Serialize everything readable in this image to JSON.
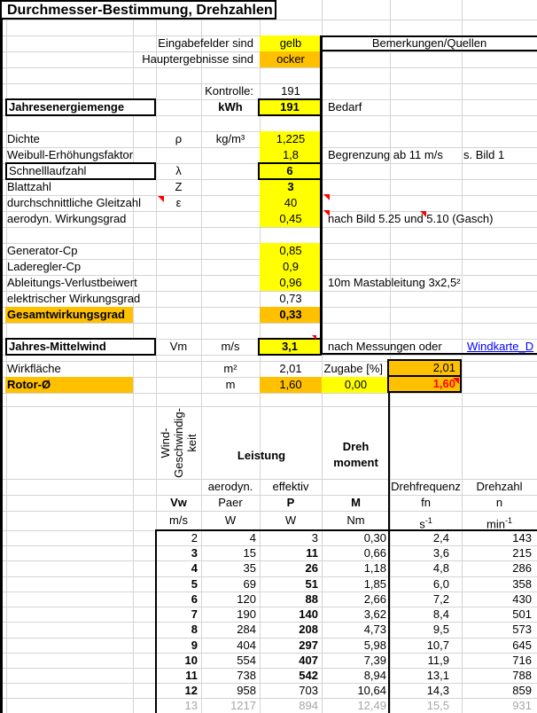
{
  "colors": {
    "input_fill": "#ffff00",
    "result_fill": "#ffc000",
    "link_blue": "#0000ff",
    "highlight_red": "#ff0000",
    "inactive_gray": "#a6a6a6"
  },
  "title": "Durchmesser-Bestimmung, Drehzahlen",
  "legend": {
    "input_label": "Eingabefelder sind",
    "input_value": "gelb",
    "result_label": "Hauptergebnisse sind",
    "result_value": "ocker"
  },
  "remarks": {
    "header": "Bemerkungen/Quellen"
  },
  "kontrolle": {
    "label": "Kontrolle:",
    "value": "191"
  },
  "energy": {
    "label": "Jahresenergiemenge",
    "unit": "kWh",
    "value": "191",
    "remark": "Bedarf"
  },
  "params": {
    "dichte": {
      "label": "Dichte",
      "symbol": "ρ",
      "unit": "kg/m³",
      "value": "1,225"
    },
    "weibull": {
      "label": "Weibull-Erhöhungsfaktor",
      "value": "1,8",
      "remark": "Begrenzung ab 11 m/s",
      "remark2": "s. Bild 1"
    },
    "schnelllaufzahl": {
      "label": "Schnelllaufzahl",
      "symbol": "λ",
      "value": "6"
    },
    "blattzahl": {
      "label": "Blattzahl",
      "symbol": "Z",
      "value": "3"
    },
    "gleitzahl": {
      "label": "durchschnittliche Gleitzahl",
      "symbol": "ε",
      "value": "40"
    },
    "aero_wirkungsgrad": {
      "label": "aerodyn. Wirkungsgrad",
      "value": "0,45",
      "remark": "nach Bild 5.25 und 5.10 (Gasch)"
    },
    "generator_cp": {
      "label": "Generator-Cp",
      "value": "0,85"
    },
    "laderegler_cp": {
      "label": "Laderegler-Cp",
      "value": "0,9"
    },
    "ableitung": {
      "label": "Ableitungs-Verlustbeiwert",
      "value": "0,96",
      "remark": "10m Mastableitung 3x2,5²"
    },
    "elektrisch": {
      "label": "elektrischer Wirkungsgrad",
      "value": "0,73"
    },
    "gesamt": {
      "label": "Gesamtwirkungsgrad",
      "value": "0,33"
    },
    "mittelwind": {
      "label": "Jahres-Mittelwind",
      "symbol": "Vm",
      "unit": "m/s",
      "value": "3,1",
      "remark": "nach Messungen oder",
      "link": "Windkarte_D"
    },
    "wirkflaeche": {
      "label": "Wirkfläche",
      "unit": "m²",
      "value": "2,01",
      "zugabe_label": "Zugabe [%]",
      "result": "2,01"
    },
    "rotor": {
      "label": "Rotor-Ø",
      "unit": "m",
      "value": "1,60",
      "zugabe": "0,00",
      "result": "1,60"
    }
  },
  "table": {
    "group_wind": [
      "Wind-",
      "Geschwindig-",
      "keit"
    ],
    "group_leistung": "Leistung",
    "group_moment": [
      "Dreh",
      "moment"
    ],
    "sub": {
      "paer": "aerodyn.",
      "p": "effektiv",
      "fn": "Drehfrequenz",
      "n": "Drehzahl"
    },
    "symbols": {
      "vw": "Vw",
      "paer": "Paer",
      "p": "P",
      "m": "M",
      "fn": "fn",
      "n": "n"
    },
    "units": {
      "vw": "m/s",
      "paer": "W",
      "p": "W",
      "m": "Nm",
      "fn_base": "s",
      "fn_sup": "-1",
      "n_base": "min",
      "n_sup": "-1"
    },
    "rows": [
      {
        "vw": "2",
        "paer": "4",
        "p": "3",
        "m": "0,30",
        "fn": "2,4",
        "n": "143",
        "vw_bold": false,
        "p_bold": false,
        "gray": false
      },
      {
        "vw": "3",
        "paer": "15",
        "p": "11",
        "m": "0,66",
        "fn": "3,6",
        "n": "215",
        "vw_bold": true,
        "p_bold": true,
        "gray": false
      },
      {
        "vw": "4",
        "paer": "35",
        "p": "26",
        "m": "1,18",
        "fn": "4,8",
        "n": "286",
        "vw_bold": true,
        "p_bold": true,
        "gray": false
      },
      {
        "vw": "5",
        "paer": "69",
        "p": "51",
        "m": "1,85",
        "fn": "6,0",
        "n": "358",
        "vw_bold": true,
        "p_bold": true,
        "gray": false
      },
      {
        "vw": "6",
        "paer": "120",
        "p": "88",
        "m": "2,66",
        "fn": "7,2",
        "n": "430",
        "vw_bold": true,
        "p_bold": true,
        "gray": false
      },
      {
        "vw": "7",
        "paer": "190",
        "p": "140",
        "m": "3,62",
        "fn": "8,4",
        "n": "501",
        "vw_bold": true,
        "p_bold": true,
        "gray": false
      },
      {
        "vw": "8",
        "paer": "284",
        "p": "208",
        "m": "4,73",
        "fn": "9,5",
        "n": "573",
        "vw_bold": true,
        "p_bold": true,
        "gray": false
      },
      {
        "vw": "9",
        "paer": "404",
        "p": "297",
        "m": "5,98",
        "fn": "10,7",
        "n": "645",
        "vw_bold": true,
        "p_bold": true,
        "gray": false
      },
      {
        "vw": "10",
        "paer": "554",
        "p": "407",
        "m": "7,39",
        "fn": "11,9",
        "n": "716",
        "vw_bold": true,
        "p_bold": true,
        "gray": false
      },
      {
        "vw": "11",
        "paer": "738",
        "p": "542",
        "m": "8,94",
        "fn": "13,1",
        "n": "788",
        "vw_bold": true,
        "p_bold": true,
        "gray": false
      },
      {
        "vw": "12",
        "paer": "958",
        "p": "703",
        "m": "10,64",
        "fn": "14,3",
        "n": "859",
        "vw_bold": true,
        "p_bold": false,
        "gray": false
      },
      {
        "vw": "13",
        "paer": "1217",
        "p": "894",
        "m": "12,49",
        "fn": "15,5",
        "n": "931",
        "vw_bold": false,
        "p_bold": false,
        "gray": true
      }
    ]
  }
}
